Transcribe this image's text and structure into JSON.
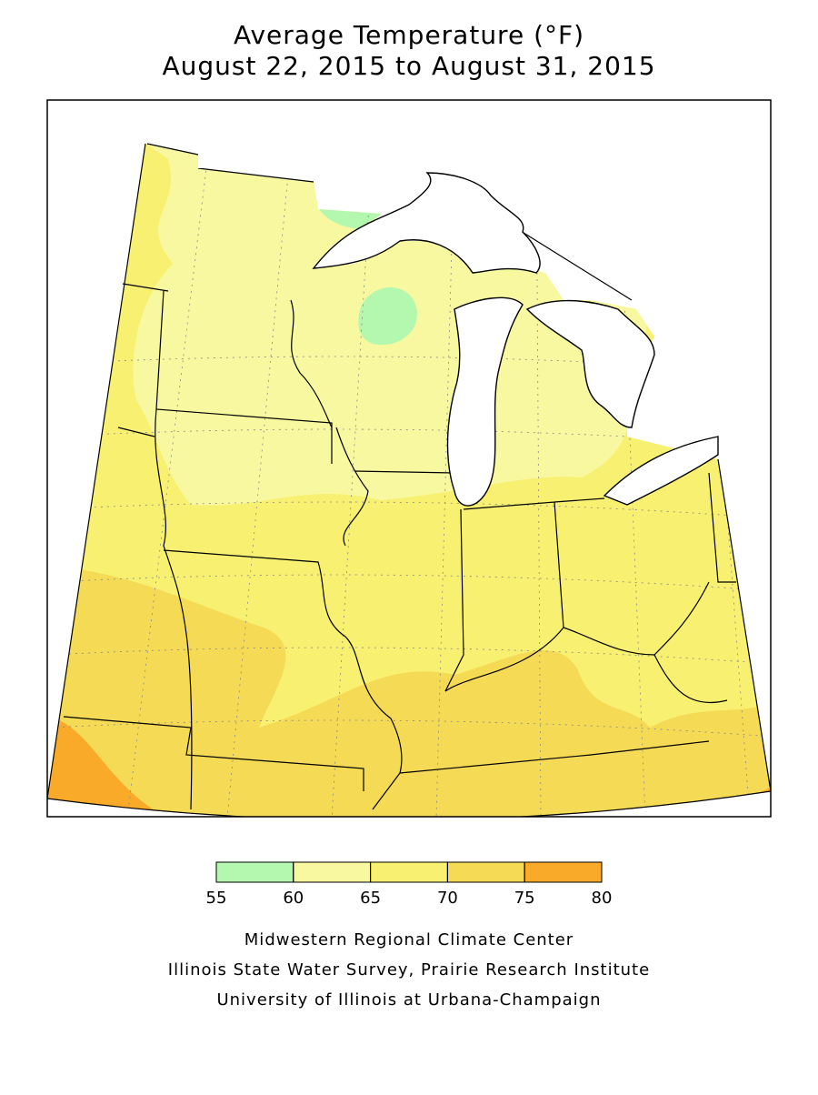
{
  "title": [
    "Average Temperature (°F)",
    "August 22, 2015 to August 31, 2015"
  ],
  "legend": {
    "ticks": [
      55,
      60,
      65,
      70,
      75,
      80
    ],
    "colors": [
      "#b4f8b0",
      "#f8f8a0",
      "#f8f070",
      "#f5da55",
      "#f8aa28"
    ]
  },
  "credits": [
    "Midwestern Regional Climate Center",
    "Illinois State Water Survey, Prairie Research Institute",
    "University of Illinois at Urbana-Champaign"
  ]
}
